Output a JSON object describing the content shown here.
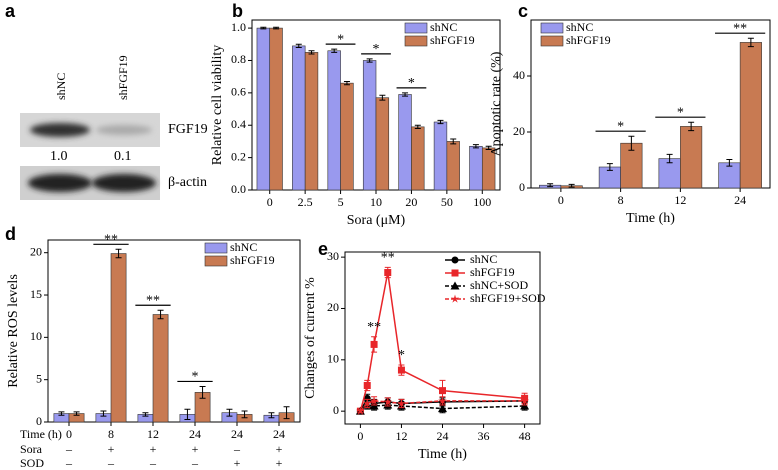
{
  "blot": {
    "panel": "a",
    "lanes": [
      "shNC",
      "shFGF19"
    ],
    "bands": [
      "FGF19",
      "β-actin"
    ],
    "ratios": [
      "1.0",
      "0.1"
    ]
  },
  "chart_data": [
    {
      "type": "bar",
      "panel": "b",
      "xlabel": "Sora (μM)",
      "ylabel": "Relative cell viability",
      "categories": [
        "0",
        "2.5",
        "5",
        "10",
        "20",
        "50",
        "100"
      ],
      "series": [
        {
          "name": "shNC",
          "color": "#9999ee",
          "values": [
            1.0,
            0.89,
            0.86,
            0.8,
            0.59,
            0.42,
            0.27
          ],
          "errors": [
            0.005,
            0.01,
            0.01,
            0.01,
            0.01,
            0.01,
            0.01
          ]
        },
        {
          "name": "shFGF19",
          "color": "#c87a52",
          "values": [
            1.0,
            0.85,
            0.66,
            0.57,
            0.39,
            0.3,
            0.26
          ],
          "errors": [
            0.005,
            0.01,
            0.01,
            0.015,
            0.01,
            0.015,
            0.01
          ]
        }
      ],
      "ylim": [
        0,
        1.05
      ],
      "yticks": [
        {
          "value": 0,
          "label": "0.0"
        },
        0.2,
        0.4,
        0.6,
        0.8,
        {
          "value": 1,
          "label": "1.0"
        }
      ],
      "legend": "upper right",
      "annotations": [
        {
          "text": "*",
          "category": 2
        },
        {
          "text": "*",
          "category": 3
        },
        {
          "text": "*",
          "category": 4
        }
      ]
    },
    {
      "type": "bar",
      "panel": "c",
      "xlabel": "Time (h)",
      "ylabel": "Apoptotic rate (%)",
      "categories": [
        "0",
        "8",
        "12",
        "24"
      ],
      "series": [
        {
          "name": "shNC",
          "color": "#9999ee",
          "values": [
            1.0,
            7.5,
            10.5,
            9.0
          ],
          "errors": [
            0.5,
            1.2,
            1.5,
            1.2
          ]
        },
        {
          "name": "shFGF19",
          "color": "#c87a52",
          "values": [
            0.8,
            16,
            22,
            52
          ],
          "errors": [
            0.5,
            2.5,
            1.5,
            1.5
          ]
        }
      ],
      "ylim": [
        0,
        60
      ],
      "yticks": [
        0,
        20,
        40
      ],
      "legend": "upper left",
      "annotations": [
        {
          "text": "*",
          "category": 1
        },
        {
          "text": "*",
          "category": 2
        },
        {
          "text": "**",
          "category": 3
        }
      ]
    },
    {
      "type": "bar",
      "panel": "d",
      "xlabel": "Time (h)",
      "ylabel": "Relative ROS levels",
      "categories": [
        "0",
        "8",
        "12",
        "24",
        "24",
        "24"
      ],
      "category_rows": [
        {
          "name": "Sora",
          "labels": [
            "–",
            "+",
            "+",
            "+",
            "–",
            "+"
          ]
        },
        {
          "name": "SOD",
          "labels": [
            "–",
            "–",
            "–",
            "–",
            "+",
            "+"
          ]
        }
      ],
      "series": [
        {
          "name": "shNC",
          "color": "#9999ee",
          "values": [
            1.0,
            1.0,
            0.9,
            0.9,
            1.1,
            0.8
          ],
          "errors": [
            0.2,
            0.3,
            0.2,
            0.6,
            0.4,
            0.3
          ]
        },
        {
          "name": "shFGF19",
          "color": "#c87a52",
          "values": [
            1.0,
            19.9,
            12.7,
            3.5,
            0.9,
            1.1
          ],
          "errors": [
            0.2,
            0.5,
            0.5,
            0.7,
            0.4,
            0.7
          ]
        }
      ],
      "ylim": [
        0,
        21.5
      ],
      "yticks": [
        0,
        5,
        10,
        15,
        20
      ],
      "legend": "upper right",
      "annotations": [
        {
          "text": "**",
          "category": 1
        },
        {
          "text": "**",
          "category": 2
        },
        {
          "text": "*",
          "category": 3
        }
      ]
    },
    {
      "type": "line",
      "panel": "e",
      "xlabel": "Time (h)",
      "ylabel": "Changes of current %",
      "x": [
        0,
        2,
        4,
        8,
        12,
        24,
        48
      ],
      "series": [
        {
          "name": "shNC",
          "color": "#000000",
          "marker": "circle",
          "dashed": false,
          "values": [
            0,
            2.5,
            1.5,
            1.8,
            1.5,
            1.8,
            2.0
          ],
          "errors": [
            0.3,
            0.8,
            0.8,
            0.8,
            0.8,
            0.8,
            0.8
          ]
        },
        {
          "name": "shFGF19",
          "color": "#e8262a",
          "marker": "square",
          "dashed": false,
          "values": [
            0,
            5,
            13,
            27,
            8,
            4,
            2.5
          ],
          "errors": [
            0.3,
            1,
            1.5,
            1,
            1,
            2,
            1
          ]
        },
        {
          "name": "shNC+SOD",
          "color": "#000000",
          "marker": "triangle",
          "dashed": true,
          "values": [
            0,
            1.2,
            1.0,
            1.2,
            1.0,
            0.5,
            1.0
          ],
          "errors": [
            0.3,
            0.8,
            0.8,
            0.8,
            0.8,
            0.8,
            0.8
          ]
        },
        {
          "name": "shFGF19+SOD",
          "color": "#e8262a",
          "marker": "star",
          "dashed": true,
          "values": [
            0,
            1.5,
            2.0,
            1.8,
            1.5,
            2.0,
            2.0
          ],
          "errors": [
            0.3,
            0.8,
            0.8,
            0.8,
            0.8,
            0.8,
            0.8
          ]
        }
      ],
      "xlim": [
        -4.5,
        52.5
      ],
      "xticks": [
        0,
        12,
        24,
        36,
        48
      ],
      "ylim": [
        -2.5,
        31
      ],
      "yticks": [
        0,
        10,
        20,
        30
      ],
      "legend": "upper right",
      "annotations": [
        {
          "text": "**",
          "x": 4
        },
        {
          "text": "**",
          "x": 8
        },
        {
          "text": "*",
          "x": 12
        }
      ]
    }
  ]
}
